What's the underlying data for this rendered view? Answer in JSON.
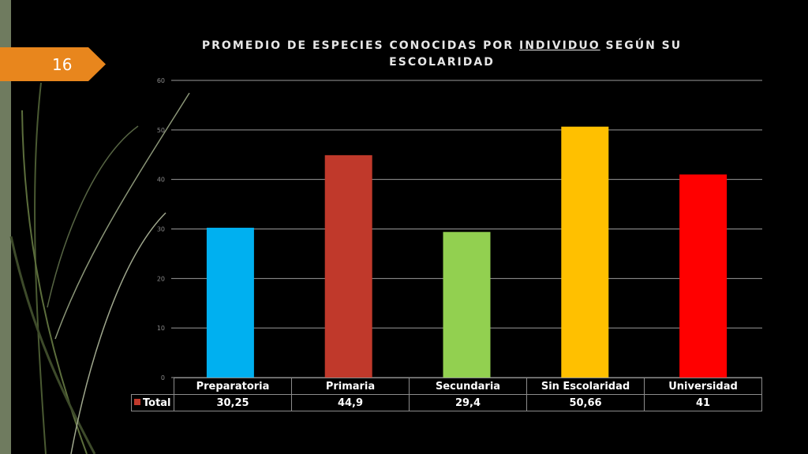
{
  "slide": {
    "number": "16"
  },
  "title": {
    "part1": "PROMEDIO DE ESPECIES CONOCIDAS POR ",
    "underlined": "INDIVIDUO",
    "part2": " SEGÚN SU ESCOLARIDAD"
  },
  "colors": {
    "background": "#000000",
    "badge": "#e8861d",
    "sidebar": "#6f7b5f",
    "legend_key": "#c0392b"
  },
  "chart_data": {
    "type": "bar",
    "title": "PROMEDIO DE ESPECIES CONOCIDAS POR INDIVIDUO SEGÚN SU ESCOLARIDAD",
    "categories": [
      "Preparatoria",
      "Primaria",
      "Secundaria",
      "Sin Escolaridad",
      "Universidad"
    ],
    "series": [
      {
        "name": "Total",
        "values": [
          30.25,
          44.9,
          29.4,
          50.66,
          41
        ],
        "labels": [
          "30,25",
          "44,9",
          "29,4",
          "50,66",
          "41"
        ],
        "colors": [
          "#00b0f0",
          "#c0392b",
          "#92d050",
          "#ffc000",
          "#ff0000"
        ]
      }
    ],
    "ylim": [
      0,
      60
    ],
    "yticks": [
      0,
      10,
      20,
      30,
      40,
      50,
      60
    ],
    "grid": true,
    "data_table": true,
    "xlabel": "",
    "ylabel": ""
  }
}
